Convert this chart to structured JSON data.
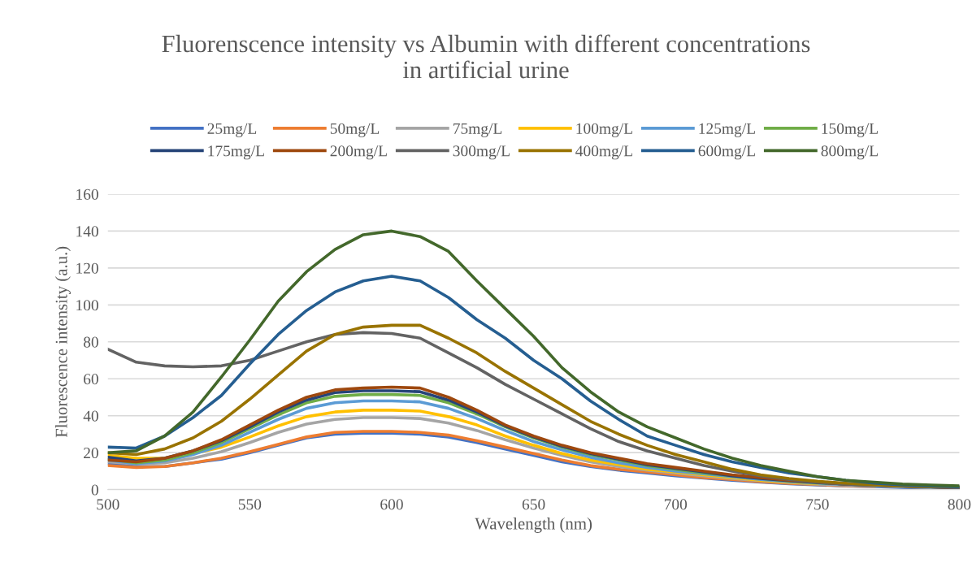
{
  "chart_data": {
    "type": "line",
    "title": "Fluorenscence intensity vs Albumin with different concentrations in artificial urine",
    "xlabel": "Wavelength (nm)",
    "ylabel": "Fluorescence intensity (a.u.)",
    "x": [
      500,
      510,
      520,
      530,
      540,
      550,
      560,
      570,
      580,
      590,
      600,
      610,
      620,
      630,
      640,
      650,
      660,
      670,
      680,
      690,
      700,
      710,
      720,
      730,
      740,
      750,
      760,
      770,
      780,
      790,
      800
    ],
    "series": [
      {
        "name": "25mg/L",
        "color": "#4472c4",
        "values": [
          14,
          12.5,
          12.5,
          14.5,
          16.5,
          20,
          24,
          28,
          30,
          30.5,
          30.5,
          30,
          28.5,
          25.5,
          22,
          18.5,
          15,
          12.5,
          10.5,
          9,
          7.5,
          6.2,
          5,
          4,
          3.2,
          2.5,
          2,
          1.6,
          1.2,
          0.9,
          0.6
        ]
      },
      {
        "name": "50mg/L",
        "color": "#ed7d31",
        "values": [
          13,
          12,
          12.5,
          14.5,
          17,
          20.5,
          24.5,
          28.5,
          31,
          31.5,
          31.5,
          31,
          29.5,
          26.5,
          23,
          19.5,
          16,
          13,
          11,
          9.5,
          8,
          6.5,
          5.5,
          4.3,
          3.4,
          2.7,
          2.1,
          1.7,
          null,
          null,
          null
        ]
      },
      {
        "name": "75mg/L",
        "color": "#a5a5a5",
        "values": [
          15,
          14,
          14.5,
          17,
          20.5,
          25.5,
          31,
          35.5,
          38,
          39,
          39,
          38.5,
          36,
          32,
          27,
          22.5,
          18.5,
          15,
          12.5,
          10.5,
          9,
          7.5,
          6,
          4.8,
          3.8,
          3,
          2.4,
          1.9,
          1.5,
          1.1,
          0.8
        ]
      },
      {
        "name": "100mg/L",
        "color": "#ffc000",
        "values": [
          18.5,
          17,
          17,
          19.5,
          23,
          28.5,
          34.5,
          39.5,
          42,
          43,
          43,
          42.5,
          39.5,
          35,
          29,
          24,
          19.5,
          16,
          13.5,
          11,
          9.5,
          8,
          6.5,
          5,
          4,
          3.2,
          null,
          null,
          null,
          null,
          null
        ]
      },
      {
        "name": "125mg/L",
        "color": "#5b9bd5",
        "values": [
          16,
          14,
          15.5,
          19,
          24,
          31,
          38,
          44,
          47,
          48,
          48,
          47.5,
          44,
          38.5,
          32,
          26,
          21.5,
          17.5,
          14.5,
          12,
          10,
          8.5,
          7,
          5.5,
          4.4,
          3.5,
          2.8,
          2.2,
          1.7,
          1.3,
          1
        ]
      },
      {
        "name": "150mg/L",
        "color": "#70ad47",
        "values": [
          16.5,
          14.5,
          16,
          20,
          25.5,
          33,
          40.5,
          47,
          50.5,
          51.5,
          51.5,
          51,
          47,
          41,
          34,
          28,
          23,
          19,
          16,
          13,
          11,
          9,
          7.5,
          6,
          4.7,
          3.7,
          2.9,
          2.3,
          null,
          null,
          null
        ]
      },
      {
        "name": "175mg/L",
        "color": "#264478",
        "values": [
          17.5,
          15.5,
          17,
          21,
          26.5,
          34,
          42,
          48.5,
          52.5,
          53.5,
          53.5,
          53,
          48.5,
          42,
          34.5,
          28.5,
          23.5,
          19.5,
          16.5,
          13.5,
          11.5,
          9.5,
          7.5,
          6,
          4.8,
          3.8,
          3,
          2.4,
          1.9,
          1.5,
          1
        ]
      },
      {
        "name": "200mg/L",
        "color": "#9e480e",
        "values": [
          16,
          15,
          17,
          21,
          27,
          35,
          43,
          50,
          54,
          55,
          55.5,
          55,
          50,
          43,
          35,
          29,
          24,
          20,
          17,
          14,
          12,
          10,
          8,
          6.5,
          5,
          4,
          3,
          2.5,
          2,
          1.5,
          1
        ]
      },
      {
        "name": "300mg/L",
        "color": "#636363",
        "values": [
          76,
          69,
          67,
          66.5,
          67,
          70,
          75,
          80,
          84,
          85,
          84.5,
          82,
          74,
          66,
          57,
          49,
          41,
          33,
          26,
          21,
          17,
          13,
          10,
          7.5,
          5.5,
          4,
          3,
          2.5,
          2,
          1.5,
          1
        ]
      },
      {
        "name": "400mg/L",
        "color": "#997300",
        "values": [
          20,
          19,
          22,
          28,
          37,
          49,
          62,
          75,
          84,
          88,
          89,
          89,
          82,
          74,
          64,
          55,
          46,
          37,
          30,
          24,
          19,
          15,
          11,
          8,
          6,
          4.5,
          3.5,
          2.5,
          2,
          1.5,
          1.5
        ]
      },
      {
        "name": "600mg/L",
        "color": "#255e91",
        "values": [
          23,
          22.5,
          29,
          39,
          51,
          68,
          84,
          97,
          107,
          113,
          115.5,
          113,
          104,
          92,
          82,
          70,
          60,
          48,
          38,
          29,
          24,
          19,
          15,
          12,
          9,
          7,
          5,
          3.5,
          2.5,
          2,
          1.5
        ]
      },
      {
        "name": "800mg/L",
        "color": "#43682b",
        "values": [
          20,
          21,
          29,
          42,
          61,
          81,
          102,
          118,
          130,
          138,
          140,
          137,
          129,
          113,
          98,
          83,
          66,
          53,
          42,
          34,
          28,
          22,
          17,
          13,
          10,
          7,
          5,
          4,
          3,
          2.5,
          2
        ]
      }
    ],
    "xlim": [
      500,
      800
    ],
    "ylim": [
      0,
      160
    ],
    "xticks": [
      500,
      550,
      600,
      650,
      700,
      750,
      800
    ],
    "yticks": [
      0,
      20,
      40,
      60,
      80,
      100,
      120,
      140,
      160
    ],
    "grid": "y",
    "legend": "top",
    "marker": "none",
    "line_style": "solid"
  }
}
